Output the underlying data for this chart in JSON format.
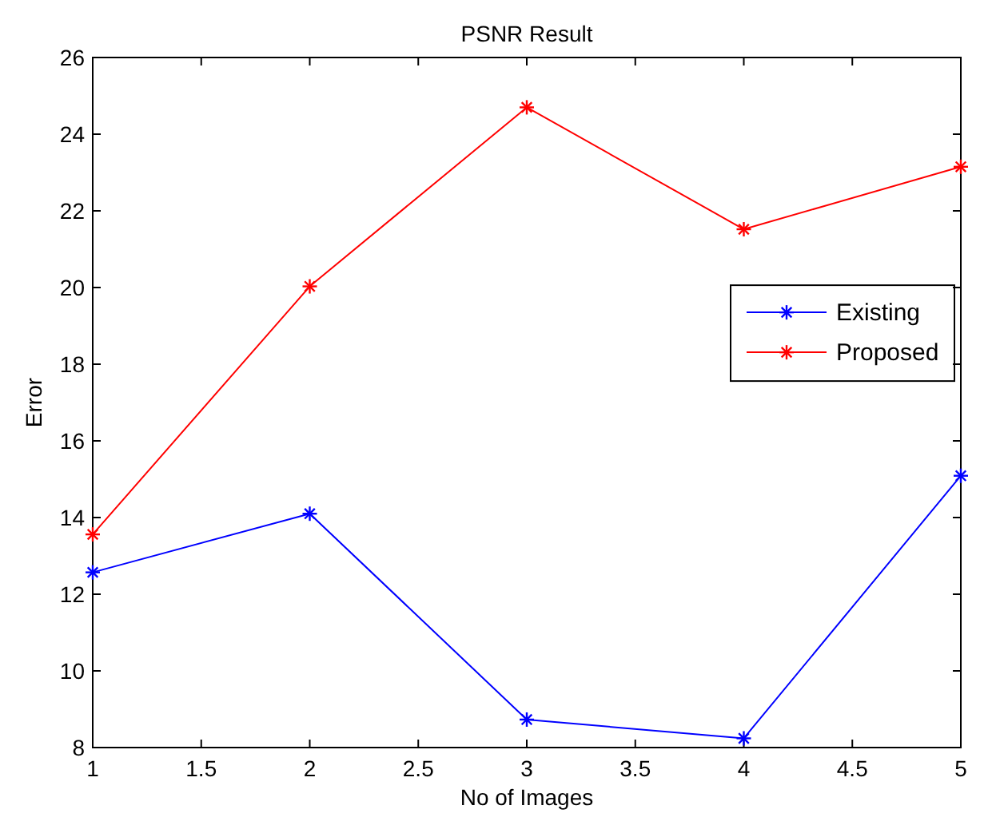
{
  "chart_data": {
    "type": "line",
    "title": "PSNR Result",
    "xlabel": "No of Images",
    "ylabel": "Error",
    "x": [
      1,
      2,
      3,
      4,
      5
    ],
    "series": [
      {
        "name": "Existing",
        "color": "#0000ff",
        "values": [
          12.57,
          14.1,
          8.73,
          8.24,
          15.09
        ]
      },
      {
        "name": "Proposed",
        "color": "#ff0000",
        "values": [
          13.56,
          20.03,
          24.7,
          21.52,
          23.15
        ]
      }
    ],
    "xlim": [
      1,
      5
    ],
    "xticks": [
      1,
      1.5,
      2,
      2.5,
      3,
      3.5,
      4,
      4.5,
      5
    ],
    "ylim": [
      8,
      26
    ],
    "yticks": [
      8,
      10,
      12,
      14,
      16,
      18,
      20,
      22,
      24,
      26
    ],
    "legend": "right",
    "marker": "cross",
    "line_style": "solid",
    "grid": false
  }
}
